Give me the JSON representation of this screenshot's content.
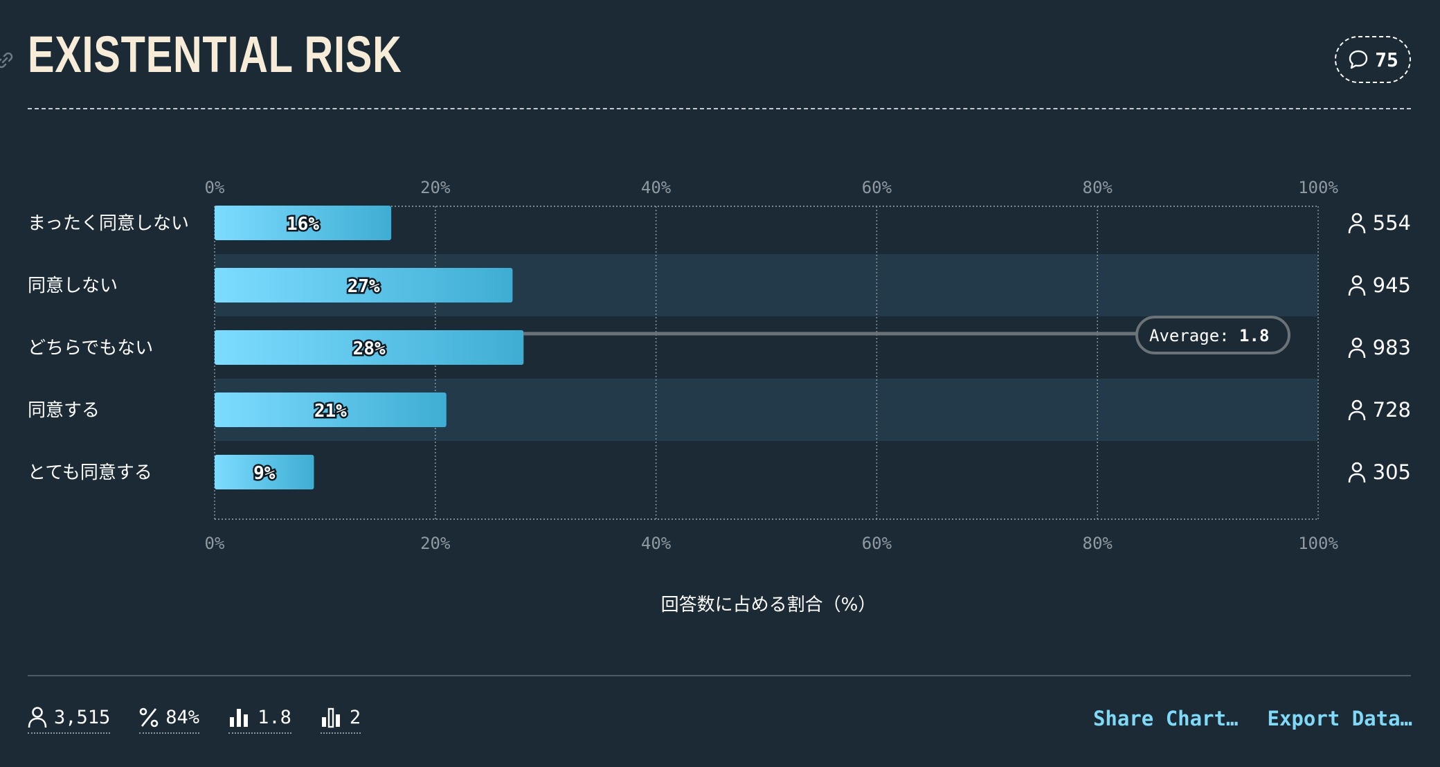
{
  "header": {
    "title": "EXISTENTIAL RISK",
    "comment_count": "75"
  },
  "chart_data": {
    "type": "bar",
    "orientation": "horizontal",
    "categories": [
      "まったく同意しない",
      "同意しない",
      "どちらでもない",
      "同意する",
      "とても同意する"
    ],
    "values": [
      16,
      27,
      28,
      21,
      9
    ],
    "value_labels": [
      "16%",
      "27%",
      "28%",
      "21%",
      "9%"
    ],
    "counts": [
      "554",
      "945",
      "983",
      "728",
      "305"
    ],
    "xlim": [
      0,
      100
    ],
    "xticks": [
      "0%",
      "20%",
      "40%",
      "60%",
      "80%",
      "100%"
    ],
    "xlabel": "回答数に占める割合（%）",
    "average": {
      "label": "Average:",
      "value": "1.8",
      "category_index": 2
    },
    "grid": true
  },
  "footer": {
    "stats": [
      {
        "icon": "person-icon",
        "value": "3,515"
      },
      {
        "icon": "percent-icon",
        "value": "84%"
      },
      {
        "icon": "bar-chart-icon",
        "value": "1.8"
      },
      {
        "icon": "median-bar-icon",
        "value": "2"
      }
    ],
    "actions": {
      "share": "Share Chart…",
      "export": "Export Data…"
    }
  },
  "colors": {
    "background": "#1b2a35",
    "band": "#223a4a",
    "bar_start": "#7ddcff",
    "bar_end": "#3fadd3",
    "accent": "#7fd9f7"
  }
}
